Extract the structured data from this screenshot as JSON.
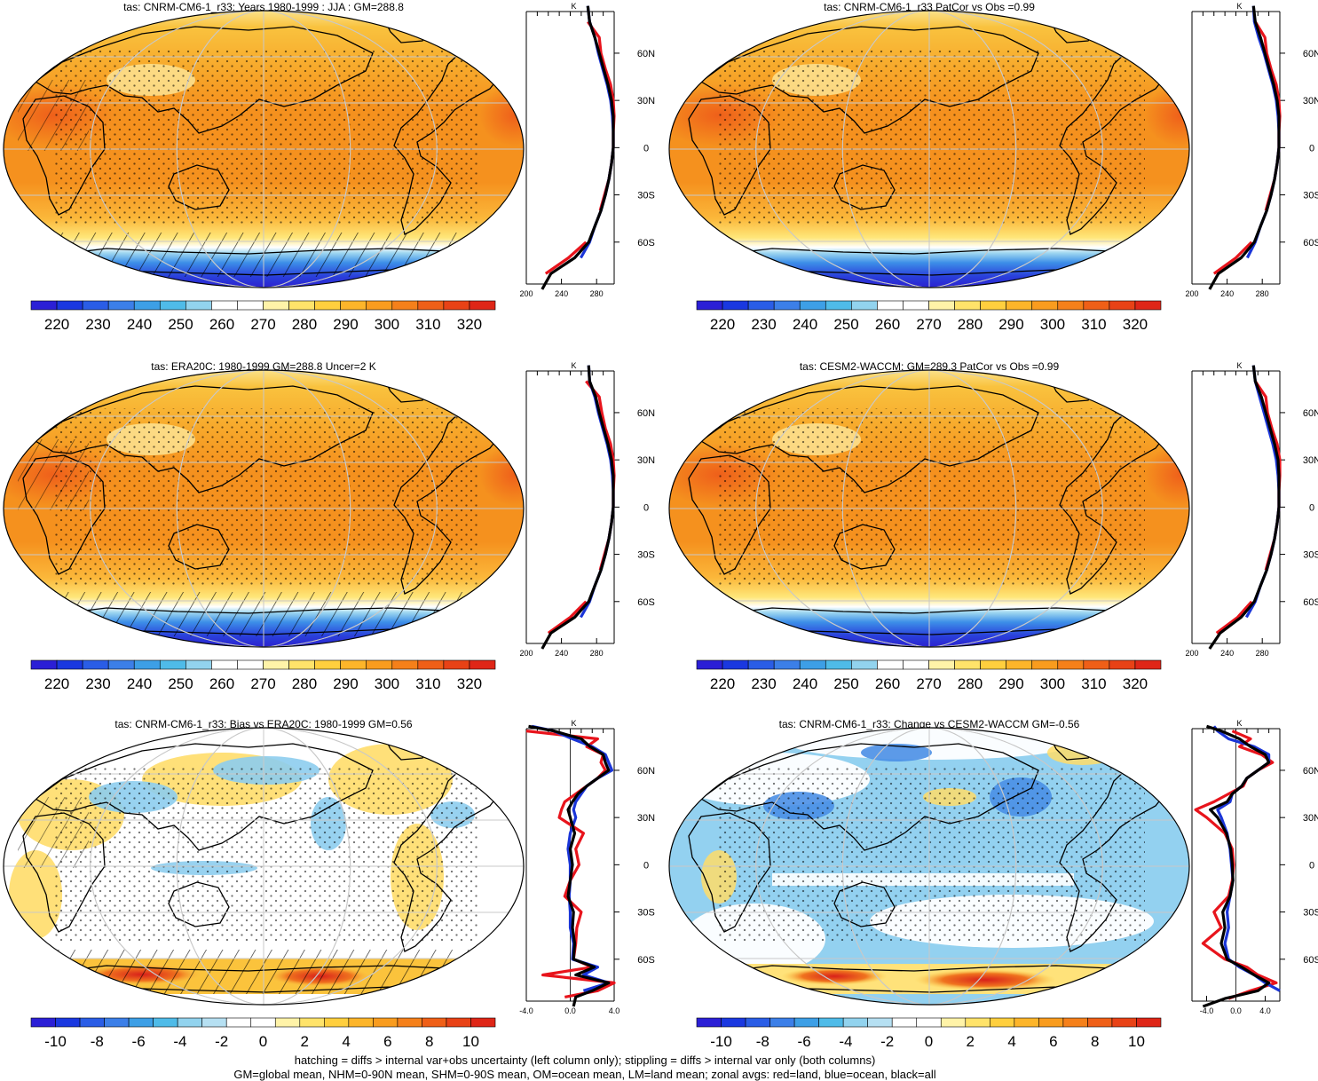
{
  "footer": {
    "line1": "hatching = diffs > internal var+obs uncertainty (left column only); stippling = diffs > internal var only (both columns)",
    "line2": "GM=global mean, NHM=0-90N mean, SHM=0-90S mean, OM=ocean mean, LM=land mean; zonal avgs: red=land, blue=ocean, black=all"
  },
  "colors": {
    "land": "#e8141c",
    "ocean": "#1a35d8",
    "all": "#000000",
    "abs_colorbar": [
      "#2b1fd6",
      "#1a38e0",
      "#2a5de6",
      "#3c7fe8",
      "#3d9fe6",
      "#4fbbe8",
      "#92d3ee",
      "#ffffff",
      "#ffffff",
      "#fff3a8",
      "#ffe36a",
      "#ffcf3e",
      "#fdb52a",
      "#f99c1e",
      "#f5801a",
      "#ef5f17",
      "#e84216",
      "#df2617"
    ],
    "diff_colorbar": [
      "#2b1fd6",
      "#1a38e0",
      "#2a5de6",
      "#3c7fe8",
      "#3d9fe6",
      "#4fbbe8",
      "#92d3ee",
      "#b6e0f2",
      "#ffffff",
      "#ffffff",
      "#fff3a8",
      "#ffe36a",
      "#ffcf3e",
      "#fdb52a",
      "#f99c1e",
      "#f5801a",
      "#ef5f17",
      "#e84216",
      "#df2617"
    ]
  },
  "chart_data": [
    {
      "type": "heatmap",
      "title": "tas: CNRM-CM6-1_r33: Years 1980-1999 : JJA : GM=288.8",
      "colorbar_labels": [
        "220",
        "230",
        "240",
        "250",
        "260",
        "270",
        "280",
        "290",
        "300",
        "310",
        "320"
      ],
      "field": "absolute",
      "zonal_mean": {
        "type": "line",
        "xlabel": "K",
        "xlim": [
          200,
          300
        ],
        "x_ticks": [
          "200",
          "240",
          "280"
        ],
        "lat_ticks": [
          "60N",
          "30N",
          "0",
          "30S",
          "60S"
        ],
        "lat": [
          -90,
          -80,
          -70,
          -60,
          -50,
          -40,
          -30,
          -20,
          -10,
          0,
          10,
          20,
          30,
          40,
          50,
          60,
          70,
          80,
          90
        ],
        "series": [
          {
            "name": "land",
            "values": [
              null,
              222,
              248,
              268,
              null,
              284,
              289,
              294,
              297,
              299,
              299,
              300,
              299,
              296,
              290,
              285,
              283,
              270,
              null
            ]
          },
          {
            "name": "ocean",
            "values": [
              null,
              null,
              262,
              272,
              278,
              285,
              290,
              294,
              297,
              299,
              299,
              298,
              296,
              292,
              287,
              282,
              278,
              272,
              270
            ]
          },
          {
            "name": "all",
            "values": [
              218,
              228,
              255,
              271,
              278,
              285,
              290,
              294,
              297,
              299,
              299,
              299,
              297,
              293,
              288,
              283,
              278,
              272,
              270
            ]
          }
        ]
      }
    },
    {
      "type": "heatmap",
      "title": "tas: CNRM-CM6-1_r33 PatCor vs Obs =0.99",
      "colorbar_labels": [
        "220",
        "230",
        "240",
        "250",
        "260",
        "270",
        "280",
        "290",
        "300",
        "310",
        "320"
      ],
      "field": "absolute",
      "zonal_mean": {
        "type": "line",
        "xlabel": "K",
        "xlim": [
          200,
          300
        ],
        "x_ticks": [
          "200",
          "240",
          "280"
        ],
        "lat_ticks": [
          "60N",
          "30N",
          "0",
          "30S",
          "60S"
        ],
        "lat": [
          -90,
          -80,
          -70,
          -60,
          -50,
          -40,
          -30,
          -20,
          -10,
          0,
          10,
          20,
          30,
          40,
          50,
          60,
          70,
          80,
          90
        ],
        "series": [
          {
            "name": "land",
            "values": [
              null,
              225,
              250,
              268,
              null,
              284,
              289,
              294,
              297,
              299,
              299,
              300,
              299,
              296,
              290,
              285,
              283,
              272,
              null
            ]
          },
          {
            "name": "ocean",
            "values": [
              null,
              null,
              263,
              272,
              278,
              285,
              290,
              294,
              297,
              299,
              299,
              298,
              296,
              292,
              287,
              282,
              276,
              271,
              270
            ]
          },
          {
            "name": "all",
            "values": [
              220,
              230,
              256,
              271,
              278,
              285,
              290,
              294,
              297,
              299,
              299,
              299,
              297,
              293,
              288,
              283,
              278,
              272,
              270
            ]
          }
        ]
      }
    },
    {
      "type": "heatmap",
      "title": "tas: ERA20C: 1980-1999 GM=288.8 Uncer=2 K",
      "colorbar_labels": [
        "220",
        "230",
        "240",
        "250",
        "260",
        "270",
        "280",
        "290",
        "300",
        "310",
        "320"
      ],
      "field": "absolute",
      "zonal_mean": {
        "type": "line",
        "xlabel": "K",
        "xlim": [
          200,
          300
        ],
        "x_ticks": [
          "200",
          "240",
          "280"
        ],
        "lat_ticks": [
          "60N",
          "30N",
          "0",
          "30S",
          "60S"
        ],
        "lat": [
          -90,
          -80,
          -70,
          -60,
          -50,
          -40,
          -30,
          -20,
          -10,
          0,
          10,
          20,
          30,
          40,
          50,
          60,
          70,
          80,
          90
        ],
        "series": [
          {
            "name": "land",
            "values": [
              null,
              225,
              250,
              268,
              null,
              284,
              289,
              294,
              297,
              299,
              299,
              300,
              299,
              296,
              290,
              286,
              283,
              268,
              null
            ]
          },
          {
            "name": "ocean",
            "values": [
              null,
              null,
              262,
              272,
              278,
              285,
              290,
              294,
              297,
              299,
              299,
              298,
              296,
              292,
              287,
              282,
              278,
              272,
              271
            ]
          },
          {
            "name": "all",
            "values": [
              218,
              228,
              255,
              271,
              278,
              285,
              290,
              294,
              297,
              299,
              299,
              299,
              297,
              293,
              288,
              283,
              279,
              272,
              271
            ]
          }
        ]
      }
    },
    {
      "type": "heatmap",
      "title": "tas: CESM2-WACCM: GM=289.3 PatCor vs Obs =0.99",
      "colorbar_labels": [
        "220",
        "230",
        "240",
        "250",
        "260",
        "270",
        "280",
        "290",
        "300",
        "310",
        "320"
      ],
      "field": "absolute",
      "zonal_mean": {
        "type": "line",
        "xlabel": "K",
        "xlim": [
          200,
          300
        ],
        "x_ticks": [
          "200",
          "240",
          "280"
        ],
        "lat_ticks": [
          "60N",
          "30N",
          "0",
          "30S",
          "60S"
        ],
        "lat": [
          -90,
          -80,
          -70,
          -60,
          -50,
          -40,
          -30,
          -20,
          -10,
          0,
          10,
          20,
          30,
          40,
          50,
          60,
          70,
          80,
          90
        ],
        "series": [
          {
            "name": "land",
            "values": [
              null,
              228,
              252,
              268,
              null,
              284,
              289,
              294,
              297,
              299,
              299,
              300,
              300,
              297,
              291,
              286,
              284,
              272,
              null
            ]
          },
          {
            "name": "ocean",
            "values": [
              null,
              null,
              262,
              272,
              278,
              285,
              290,
              294,
              297,
              299,
              299,
              298,
              296,
              292,
              287,
              282,
              277,
              272,
              270
            ]
          },
          {
            "name": "all",
            "values": [
              220,
              232,
              256,
              271,
              278,
              285,
              290,
              294,
              297,
              299,
              299,
              299,
              298,
              294,
              289,
              284,
              279,
              272,
              270
            ]
          }
        ]
      }
    },
    {
      "type": "heatmap",
      "title": "tas: CNRM-CM6-1_r33: Bias vs ERA20C: 1980-1999 GM=0.56",
      "colorbar_labels": [
        "-10",
        "-8",
        "-6",
        "-4",
        "-2",
        "0",
        "2",
        "4",
        "6",
        "8",
        "10"
      ],
      "field": "difference",
      "zonal_mean": {
        "type": "line",
        "xlabel": "K",
        "xlim": [
          -4,
          4
        ],
        "x_ticks": [
          "-4.0",
          "0.0",
          "4.0"
        ],
        "lat_ticks": [
          "60N",
          "30N",
          "0",
          "30S",
          "60S"
        ],
        "lat": [
          -90,
          -84,
          -80,
          -75,
          -70,
          -65,
          -60,
          -50,
          -40,
          -30,
          -20,
          -10,
          0,
          10,
          20,
          30,
          35,
          40,
          45,
          50,
          55,
          60,
          65,
          70,
          75,
          80,
          85,
          88
        ],
        "series": [
          {
            "name": "land",
            "values": [
              null,
              -0.5,
              2.5,
              4.0,
              -2.5,
              2.0,
              0.3,
              0.5,
              0.6,
              1.0,
              -0.5,
              0.0,
              0.8,
              0.5,
              1.2,
              -1.0,
              -0.8,
              -0.5,
              0.5,
              1.5,
              2.5,
              3.2,
              2.8,
              3.0,
              1.5,
              2.5,
              -4.0,
              null
            ]
          },
          {
            "name": "ocean",
            "values": [
              null,
              null,
              1.2,
              3.5,
              1.2,
              2.5,
              0.2,
              0.3,
              0.0,
              0.0,
              -0.1,
              0.0,
              0.0,
              -0.2,
              0.0,
              0.5,
              0.3,
              0.5,
              1.0,
              1.5,
              2.5,
              3.8,
              3.5,
              3.2,
              2.0,
              0.2,
              -1.5,
              -3.5
            ]
          },
          {
            "name": "all",
            "values": [
              0.3,
              0.5,
              2.0,
              3.5,
              0.5,
              2.2,
              0.3,
              0.4,
              0.2,
              0.3,
              -0.2,
              0.0,
              0.2,
              0.0,
              0.4,
              0.0,
              -0.2,
              0.2,
              0.7,
              1.5,
              2.5,
              3.5,
              3.2,
              3.0,
              1.8,
              1.0,
              -1.5,
              -3.8
            ]
          }
        ]
      }
    },
    {
      "type": "heatmap",
      "title": "tas: CNRM-CM6-1_r33: Change vs CESM2-WACCM GM=-0.56",
      "colorbar_labels": [
        "-10",
        "-8",
        "-6",
        "-4",
        "-2",
        "0",
        "2",
        "4",
        "6",
        "8",
        "10"
      ],
      "field": "difference",
      "zonal_mean": {
        "type": "line",
        "xlabel": "K",
        "xlim": [
          -6,
          6
        ],
        "x_ticks": [
          "-4.0",
          "0.0",
          "4.0"
        ],
        "lat_ticks": [
          "60N",
          "30N",
          "0",
          "30S",
          "60S"
        ],
        "lat": [
          -90,
          -85,
          -80,
          -75,
          -70,
          -65,
          -60,
          -50,
          -40,
          -30,
          -20,
          -10,
          0,
          10,
          20,
          30,
          35,
          40,
          45,
          50,
          55,
          60,
          65,
          70,
          75,
          80,
          85,
          88
        ],
        "series": [
          {
            "name": "land",
            "values": [
              null,
              -1.0,
              2.0,
              5.5,
              3.0,
              1.5,
              -1.5,
              -4.5,
              -2.0,
              -3.0,
              -1.0,
              -0.5,
              -0.3,
              -0.5,
              -1.5,
              -4.0,
              -5.5,
              -3.0,
              -1.0,
              1.0,
              1.5,
              3.0,
              5.0,
              3.5,
              0.5,
              2.0,
              -0.5,
              null
            ]
          },
          {
            "name": "ocean",
            "values": [
              null,
              null,
              6.0,
              4.0,
              2.5,
              0.5,
              -1.0,
              -1.5,
              -1.0,
              -1.2,
              -0.8,
              -0.4,
              -0.6,
              -0.8,
              -1.2,
              -2.0,
              -2.5,
              -0.8,
              -0.5,
              0.8,
              1.5,
              3.0,
              4.5,
              4.5,
              2.5,
              -1.0,
              -2.5,
              -3.0
            ]
          },
          {
            "name": "all",
            "values": [
              -4.5,
              -1.5,
              3.0,
              4.5,
              2.5,
              0.8,
              -1.2,
              -2.0,
              -1.5,
              -1.8,
              -0.8,
              -0.4,
              -0.5,
              -0.7,
              -1.3,
              -2.5,
              -3.5,
              -1.2,
              -0.5,
              0.8,
              1.5,
              3.0,
              4.5,
              4.0,
              2.0,
              0.5,
              -2.0,
              -4.0
            ]
          }
        ]
      }
    }
  ]
}
